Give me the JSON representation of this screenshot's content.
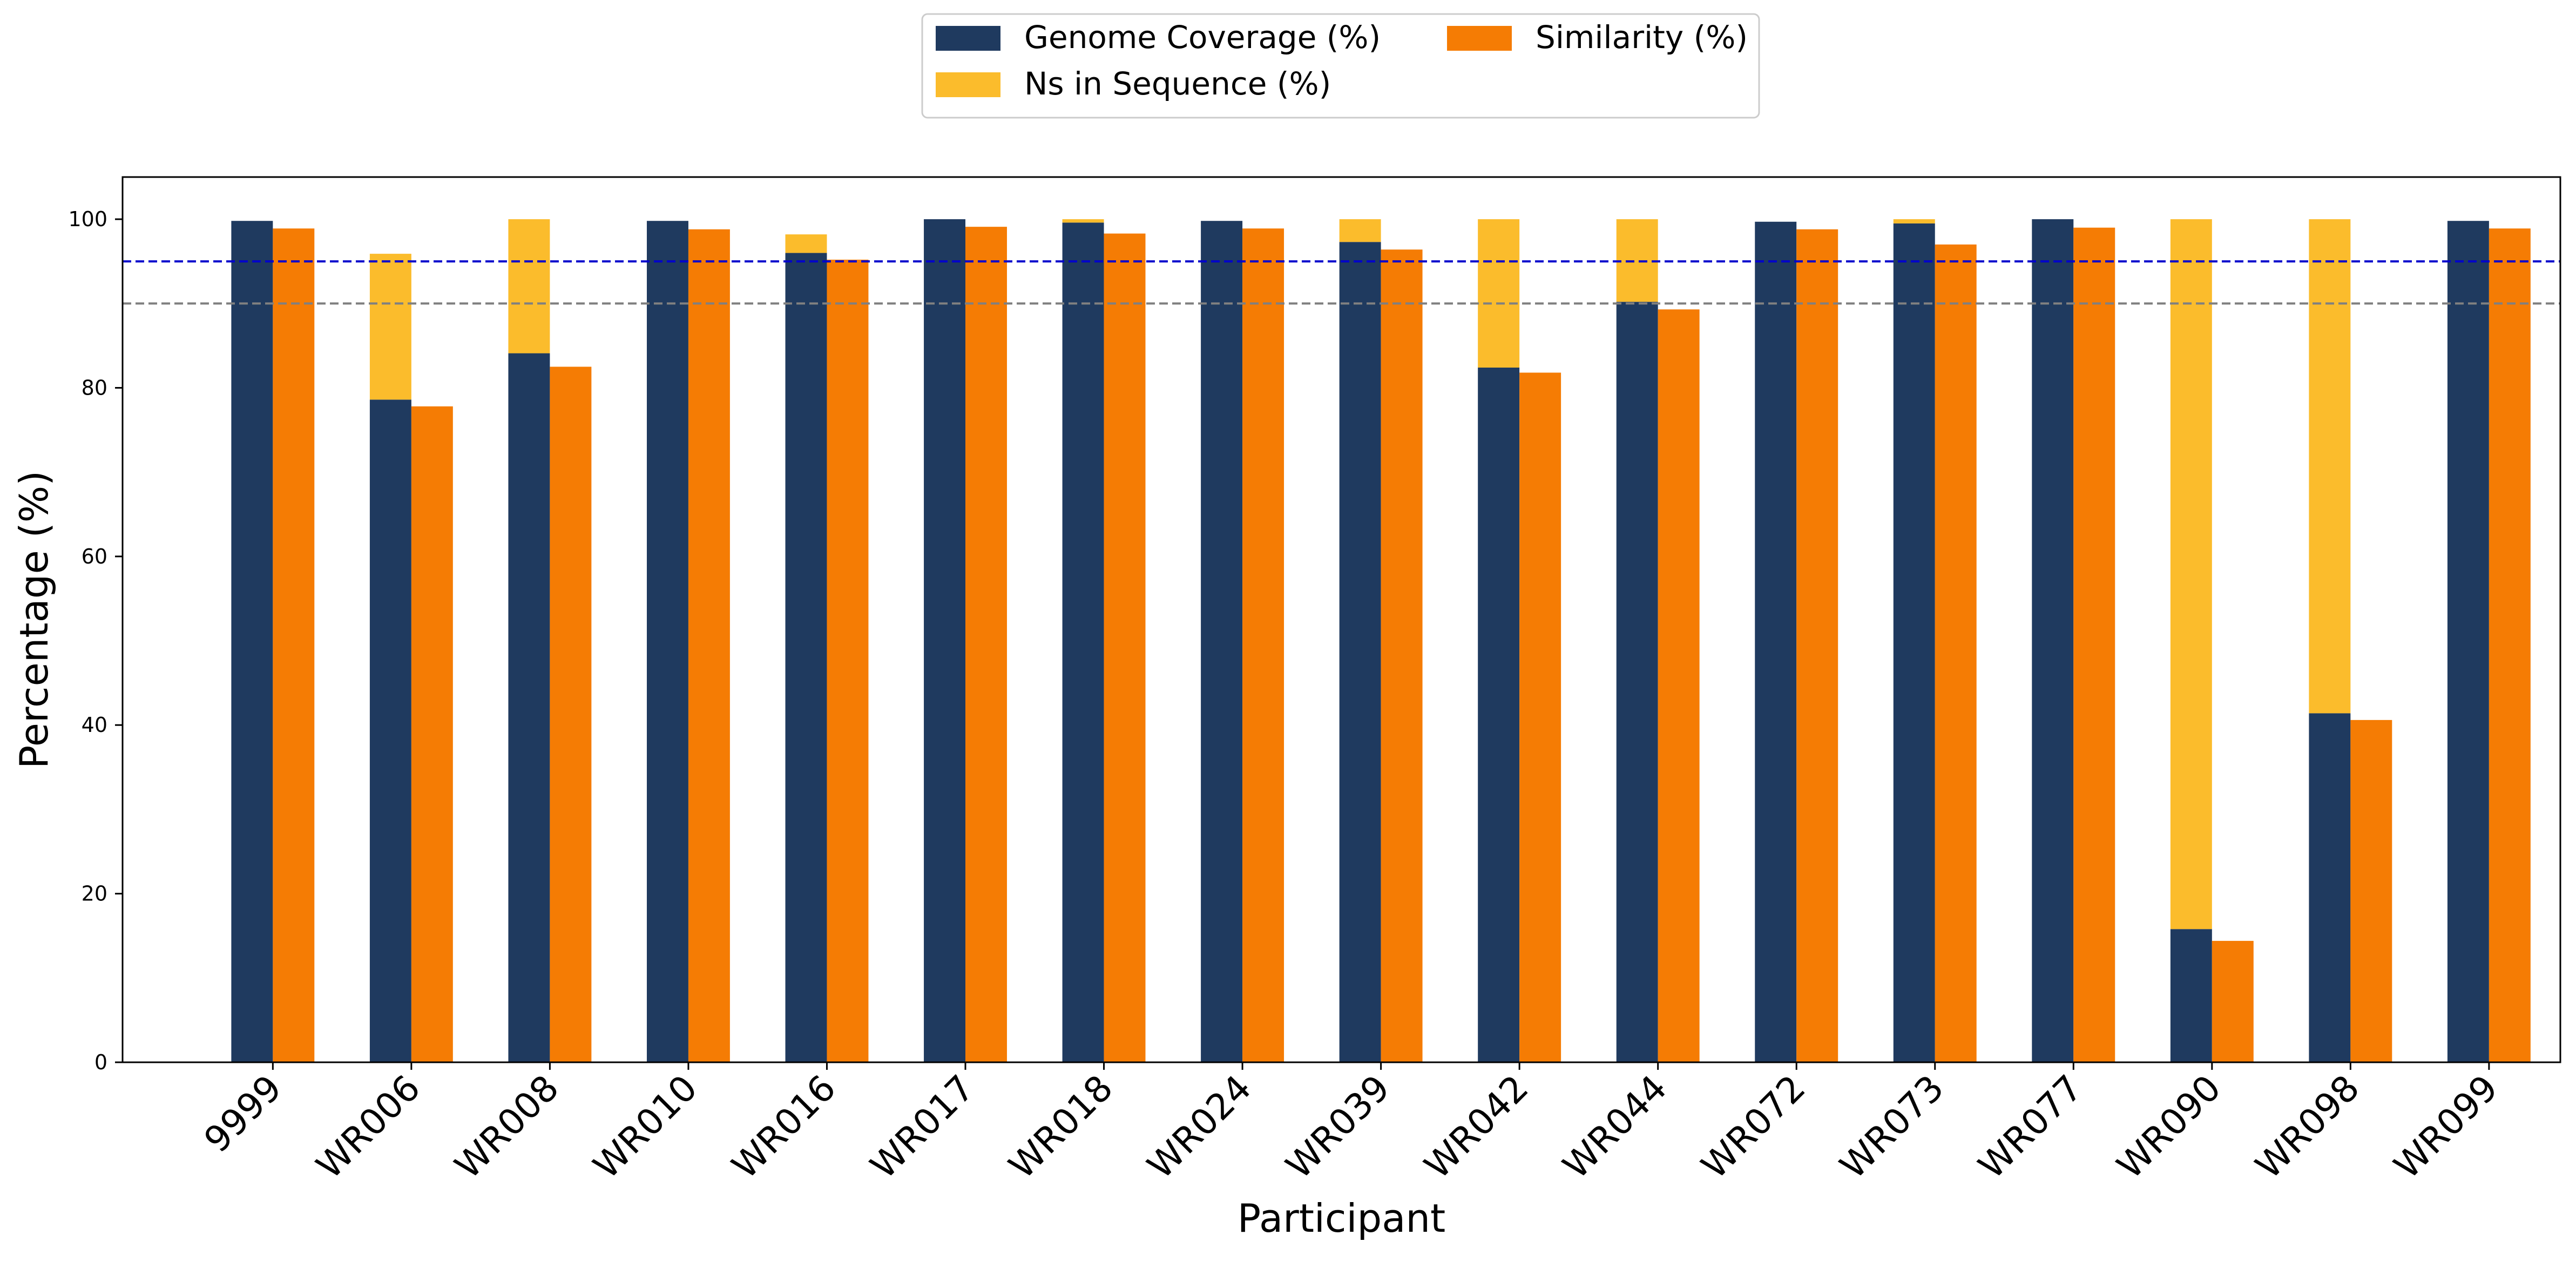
{
  "chart_data": {
    "type": "bar",
    "xlabel": "Participant",
    "ylabel": "Percentage (%)",
    "ylim": [
      0,
      105
    ],
    "yticks": [
      0,
      20,
      40,
      60,
      80,
      100
    ],
    "grid": false,
    "legend_position": "top-center",
    "categories": [
      "9999",
      "WR006",
      "WR008",
      "WR010",
      "WR016",
      "WR017",
      "WR018",
      "WR024",
      "WR039",
      "WR042",
      "WR044",
      "WR072",
      "WR073",
      "WR077",
      "WR090",
      "WR098",
      "WR099"
    ],
    "series": [
      {
        "name": "Genome Coverage (%)",
        "color": "#1f3a5f",
        "values": [
          99.8,
          78.6,
          84.1,
          99.8,
          96.0,
          100.0,
          99.6,
          99.8,
          97.3,
          82.4,
          90.2,
          99.7,
          99.5,
          100.0,
          15.8,
          41.4,
          99.8
        ]
      },
      {
        "name": "Ns in Sequence (%)",
        "color": "#fbbc2c",
        "stacked_on": "Genome Coverage (%)",
        "values": [
          0.0,
          17.3,
          15.9,
          0.0,
          2.2,
          0.0,
          0.4,
          0.0,
          2.7,
          17.6,
          9.8,
          0.0,
          0.5,
          0.0,
          84.2,
          58.6,
          0.0
        ]
      },
      {
        "name": "Similarity (%)",
        "color": "#f57c04",
        "values": [
          98.9,
          77.8,
          82.5,
          98.8,
          95.2,
          99.1,
          98.3,
          98.9,
          96.4,
          81.8,
          89.3,
          98.8,
          97.0,
          99.0,
          14.4,
          40.6,
          98.9
        ]
      }
    ],
    "reference_lines": [
      {
        "y": 95,
        "color": "#0000cc",
        "style": "dashed"
      },
      {
        "y": 90,
        "color": "#808080",
        "style": "dashed"
      }
    ]
  }
}
